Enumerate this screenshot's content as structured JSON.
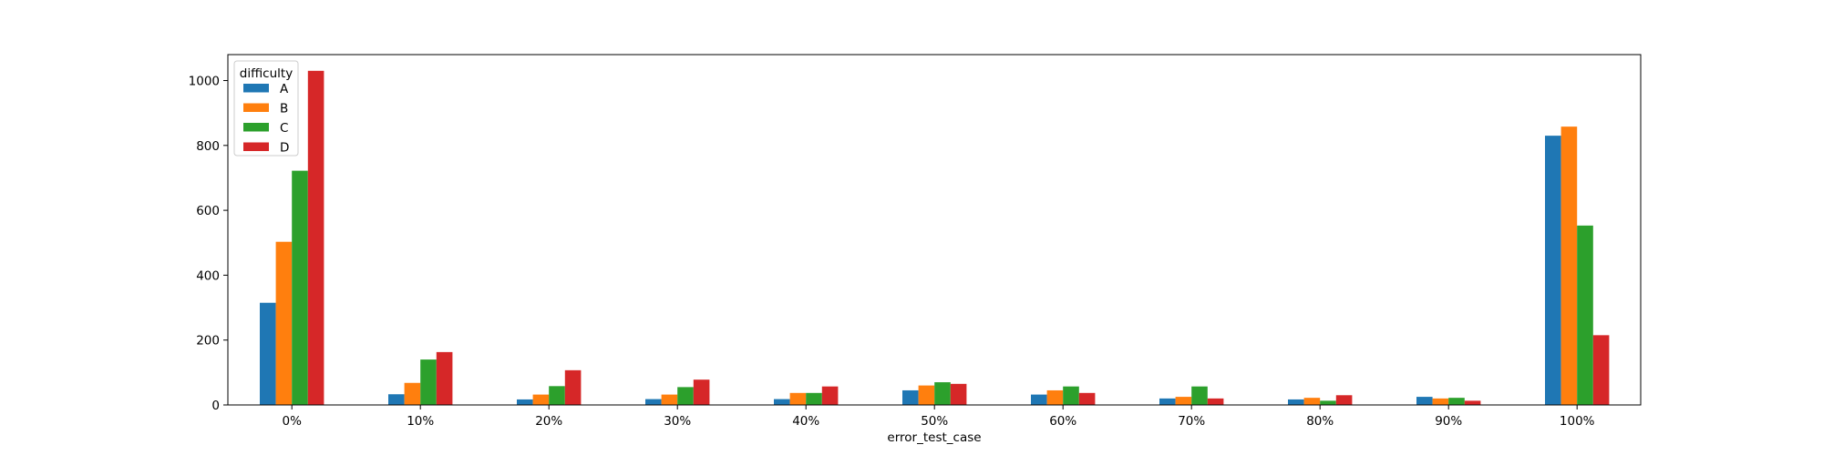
{
  "chart_data": {
    "type": "bar",
    "title": "",
    "xlabel": "error_test_case",
    "ylabel": "",
    "ylim": [
      0,
      1080
    ],
    "yticks": [
      0,
      200,
      400,
      600,
      800,
      1000
    ],
    "grid": false,
    "legend": {
      "title": "difficulty",
      "placement": "top-left"
    },
    "categories": [
      "0%",
      "10%",
      "20%",
      "30%",
      "40%",
      "50%",
      "60%",
      "70%",
      "80%",
      "90%",
      "100%"
    ],
    "series": [
      {
        "name": "A",
        "color": "#1f77b4",
        "values": [
          315,
          33,
          17,
          18,
          18,
          45,
          32,
          20,
          17,
          25,
          830
        ]
      },
      {
        "name": "B",
        "color": "#ff7f0e",
        "values": [
          503,
          68,
          32,
          32,
          37,
          60,
          45,
          25,
          22,
          20,
          858
        ]
      },
      {
        "name": "C",
        "color": "#2ca02c",
        "values": [
          722,
          140,
          58,
          55,
          37,
          70,
          57,
          57,
          13,
          22,
          553
        ]
      },
      {
        "name": "D",
        "color": "#d62728",
        "values": [
          1030,
          163,
          107,
          78,
          57,
          65,
          37,
          20,
          30,
          13,
          215
        ]
      }
    ]
  }
}
